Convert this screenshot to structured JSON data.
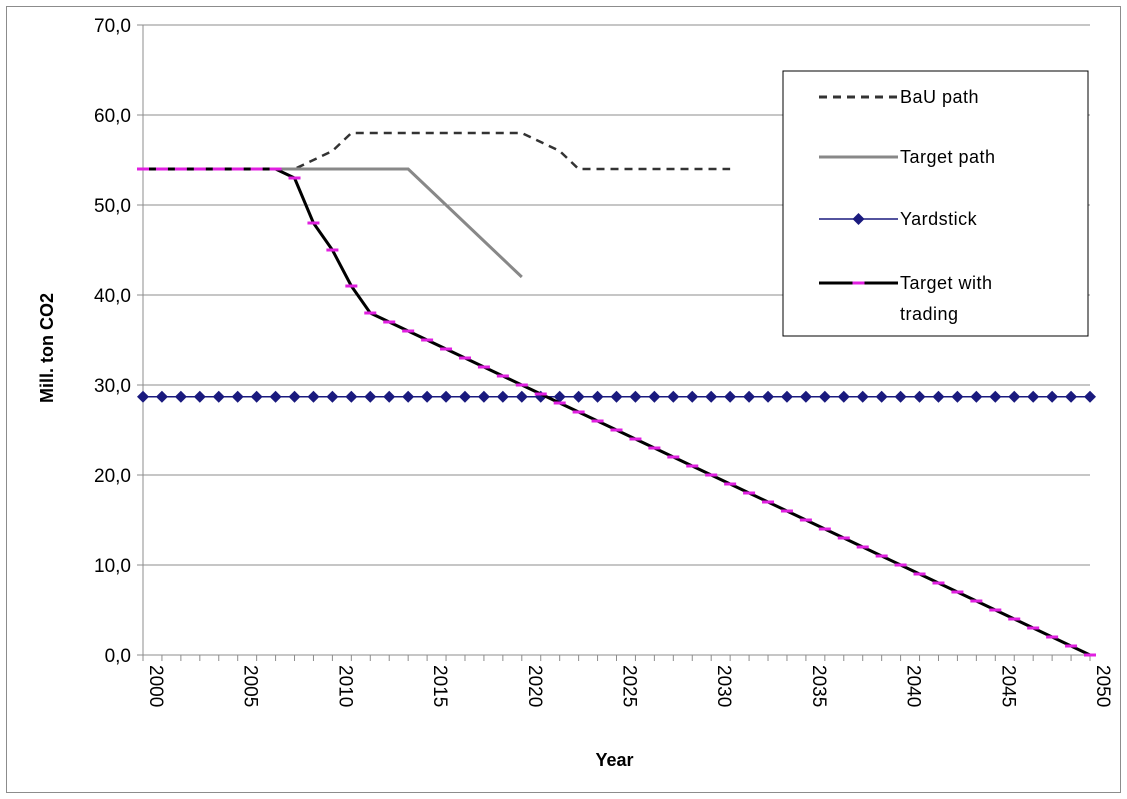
{
  "chart_data": {
    "type": "line",
    "xlabel": "Year",
    "ylabel": "Mill. ton CO2",
    "xlim": [
      2000,
      2050
    ],
    "ylim": [
      0,
      70
    ],
    "y_ticks": [
      "0,0",
      "10,0",
      "20,0",
      "30,0",
      "40,0",
      "50,0",
      "60,0",
      "70,0"
    ],
    "x_ticks": [
      "2000",
      "2005",
      "2010",
      "2015",
      "2020",
      "2025",
      "2030",
      "2035",
      "2040",
      "2045",
      "2050"
    ],
    "grid": "horizontal",
    "legend_position": "top-right",
    "series": [
      {
        "name": "BaU path",
        "style": "dashed",
        "color": "#333333",
        "x": [
          2000,
          2008,
          2010,
          2011,
          2020,
          2022,
          2023,
          2031
        ],
        "y": [
          54,
          54,
          56,
          58,
          58,
          56,
          54,
          54
        ]
      },
      {
        "name": "Target path",
        "style": "solid",
        "color": "#888888",
        "x": [
          2000,
          2014,
          2015,
          2016,
          2017,
          2018,
          2019,
          2020
        ],
        "y": [
          54,
          54,
          52,
          50,
          48,
          46,
          44,
          42
        ]
      },
      {
        "name": "Yardstick",
        "style": "diamond-markers",
        "color": "#1a1a7e",
        "x": [
          2000,
          2001,
          2002,
          2003,
          2004,
          2005,
          2006,
          2007,
          2008,
          2009,
          2010,
          2011,
          2012,
          2013,
          2014,
          2015,
          2016,
          2017,
          2018,
          2019,
          2020,
          2021,
          2022,
          2023,
          2024,
          2025,
          2026,
          2027,
          2028,
          2029,
          2030,
          2031,
          2032,
          2033,
          2034,
          2035,
          2036,
          2037,
          2038,
          2039,
          2040,
          2041,
          2042,
          2043,
          2044,
          2045,
          2046,
          2047,
          2048,
          2049,
          2050
        ],
        "y": [
          28.7,
          28.7,
          28.7,
          28.7,
          28.7,
          28.7,
          28.7,
          28.7,
          28.7,
          28.7,
          28.7,
          28.7,
          28.7,
          28.7,
          28.7,
          28.7,
          28.7,
          28.7,
          28.7,
          28.7,
          28.7,
          28.7,
          28.7,
          28.7,
          28.7,
          28.7,
          28.7,
          28.7,
          28.7,
          28.7,
          28.7,
          28.7,
          28.7,
          28.7,
          28.7,
          28.7,
          28.7,
          28.7,
          28.7,
          28.7,
          28.7,
          28.7,
          28.7,
          28.7,
          28.7,
          28.7,
          28.7,
          28.7,
          28.7,
          28.7,
          28.7
        ]
      },
      {
        "name": "Target with trading",
        "name_lines": [
          "Target with",
          "trading"
        ],
        "style": "dash-markers",
        "color": "#000000",
        "marker_color": "#e020e0",
        "x": [
          2000,
          2001,
          2002,
          2003,
          2004,
          2005,
          2006,
          2007,
          2008,
          2009,
          2010,
          2011,
          2012,
          2013,
          2014,
          2015,
          2016,
          2017,
          2018,
          2019,
          2020,
          2021,
          2022,
          2023,
          2024,
          2025,
          2026,
          2027,
          2028,
          2029,
          2030,
          2031,
          2032,
          2033,
          2034,
          2035,
          2036,
          2037,
          2038,
          2039,
          2040,
          2041,
          2042,
          2043,
          2044,
          2045,
          2046,
          2047,
          2048,
          2049,
          2050
        ],
        "y": [
          54,
          54,
          54,
          54,
          54,
          54,
          54,
          54,
          53,
          48,
          45,
          41,
          38,
          37,
          36,
          35,
          34,
          33,
          32,
          31,
          30,
          29,
          28,
          27,
          26,
          25,
          24,
          23,
          22,
          21,
          20,
          19,
          18,
          17,
          16,
          15,
          14,
          13,
          12,
          11,
          10,
          9,
          8,
          7,
          6,
          5,
          4,
          3,
          2,
          1,
          0
        ]
      }
    ]
  }
}
